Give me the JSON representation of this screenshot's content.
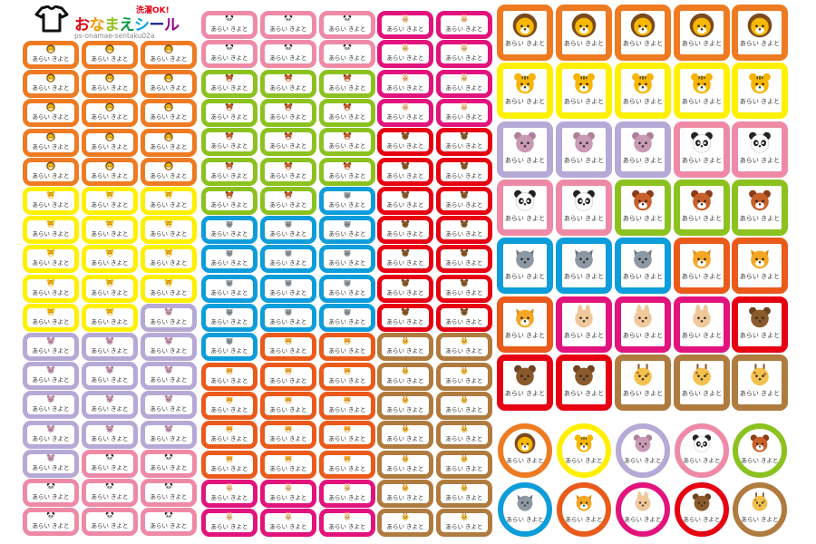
{
  "header": {
    "tag": "洗濯OK!",
    "title_chars": [
      {
        "c": "お",
        "color": "#e60012"
      },
      {
        "c": "な",
        "color": "#f39800"
      },
      {
        "c": "ま",
        "color": "#8fc31f"
      },
      {
        "c": "え",
        "color": "#009944"
      },
      {
        "c": "シ",
        "color": "#00a0e9"
      },
      {
        "c": "ー",
        "color": "#1d2088"
      },
      {
        "c": "ル",
        "color": "#920783"
      }
    ],
    "code": "ps-onamae-sentaku02a",
    "icon": "shirt-icon"
  },
  "sticker_name": "あらい きよと",
  "animals": {
    "lion": {
      "border": "#ee7b22",
      "face": "#f6b800",
      "ear": "#7b4a1e"
    },
    "tiger": {
      "border": "#fff000",
      "face": "#f7b500",
      "ear": "#f7b500"
    },
    "hippo": {
      "border": "#b6a9d6",
      "face": "#c99ab4",
      "ear": "#b07f9b"
    },
    "panda": {
      "border": "#ee8aa6",
      "face": "#ffffff",
      "ear": "#222222"
    },
    "redpanda": {
      "border": "#8cc21f",
      "face": "#c8602a",
      "ear": "#8a3b17"
    },
    "wolf": {
      "border": "#0e9ddb",
      "face": "#8e98a3",
      "ear": "#6b7480"
    },
    "fox": {
      "border": "#ea5a1a",
      "face": "#f5a623",
      "ear": "#e08a10"
    },
    "rabbit": {
      "border": "#e2137c",
      "face": "#f0c89a",
      "ear": "#f0c89a"
    },
    "bear": {
      "border": "#e60012",
      "face": "#8b5a2b",
      "ear": "#6e4420"
    },
    "giraffe": {
      "border": "#b07b3e",
      "face": "#f2c14e",
      "ear": "#8b5a2b"
    }
  },
  "small_columns": [
    [
      "lion",
      "lion",
      "lion",
      "lion",
      "lion",
      "tiger",
      "tiger",
      "tiger",
      "tiger",
      "tiger",
      "hippo",
      "hippo",
      "hippo",
      "hippo",
      "hippo",
      "panda",
      "panda"
    ],
    [
      "lion",
      "lion",
      "lion",
      "lion",
      "lion",
      "tiger",
      "tiger",
      "tiger",
      "tiger",
      "tiger",
      "hippo",
      "hippo",
      "hippo",
      "hippo",
      "panda",
      "panda",
      "panda"
    ],
    [
      "lion",
      "lion",
      "lion",
      "lion",
      "lion",
      "tiger",
      "tiger",
      "tiger",
      "tiger",
      "hippo",
      "hippo",
      "hippo",
      "hippo",
      "hippo",
      "panda",
      "panda",
      "panda"
    ],
    [
      "panda",
      "panda",
      "redpanda",
      "redpanda",
      "redpanda",
      "redpanda",
      "redpanda",
      "wolf",
      "wolf",
      "wolf",
      "wolf",
      "wolf",
      "fox",
      "fox",
      "fox",
      "fox",
      "rabbit",
      "rabbit"
    ],
    [
      "panda",
      "panda",
      "redpanda",
      "redpanda",
      "redpanda",
      "redpanda",
      "redpanda",
      "wolf",
      "wolf",
      "wolf",
      "wolf",
      "fox",
      "fox",
      "fox",
      "fox",
      "fox",
      "rabbit",
      "rabbit"
    ],
    [
      "panda",
      "panda",
      "redpanda",
      "redpanda",
      "redpanda",
      "redpanda",
      "wolf",
      "wolf",
      "wolf",
      "wolf",
      "wolf",
      "fox",
      "fox",
      "fox",
      "fox",
      "fox",
      "rabbit",
      "rabbit"
    ],
    [
      "rabbit",
      "rabbit",
      "rabbit",
      "rabbit",
      "bear",
      "bear",
      "bear",
      "bear",
      "bear",
      "bear",
      "bear",
      "giraffe",
      "giraffe",
      "giraffe",
      "giraffe",
      "giraffe",
      "giraffe",
      "giraffe"
    ],
    [
      "rabbit",
      "rabbit",
      "rabbit",
      "rabbit",
      "bear",
      "bear",
      "bear",
      "bear",
      "bear",
      "bear",
      "bear",
      "giraffe",
      "giraffe",
      "giraffe",
      "giraffe",
      "giraffe",
      "giraffe",
      "giraffe"
    ]
  ],
  "big_rows": [
    [
      "lion",
      "lion",
      "lion",
      "lion",
      "lion"
    ],
    [
      "tiger",
      "tiger",
      "tiger",
      "tiger",
      "tiger"
    ],
    [
      "hippo",
      "hippo",
      "hippo",
      "panda",
      "panda"
    ],
    [
      "panda",
      "panda",
      "redpanda",
      "redpanda",
      "redpanda"
    ],
    [
      "wolf",
      "wolf",
      "wolf",
      "fox",
      "fox"
    ],
    [
      "fox",
      "rabbit",
      "rabbit",
      "rabbit",
      "bear"
    ],
    [
      "bear",
      "bear",
      "giraffe",
      "giraffe",
      "giraffe"
    ]
  ],
  "circle_rows": [
    [
      "lion",
      "tiger",
      "hippo",
      "panda",
      "redpanda"
    ],
    [
      "wolf",
      "fox",
      "rabbit",
      "bear",
      "giraffe"
    ]
  ]
}
